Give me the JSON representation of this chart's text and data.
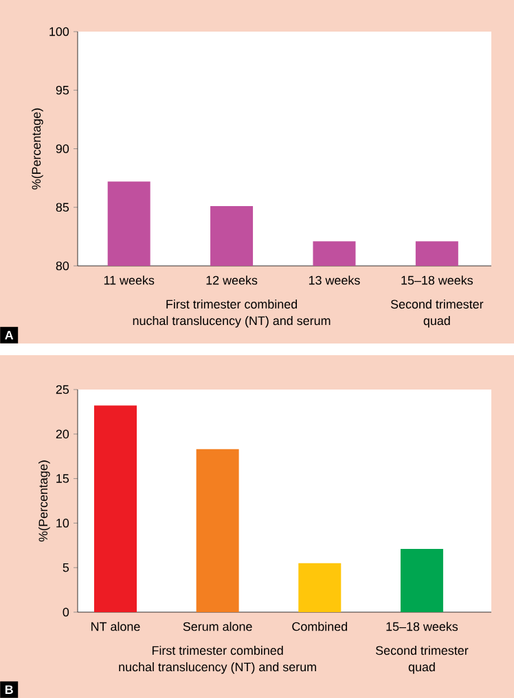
{
  "chart_data": [
    {
      "type": "bar",
      "title": "A",
      "ylabel": "%(Percentage)",
      "categories": [
        "11 weeks",
        "12 weeks",
        "13 weeks",
        "15–18 weeks"
      ],
      "values": [
        87.2,
        85.1,
        82.1,
        82.1
      ],
      "color": "#c0509e",
      "ylim": [
        80,
        100
      ],
      "yticks": [
        80,
        85,
        90,
        95,
        100
      ],
      "annotations": [
        "First trimester combined",
        "nuchal translucency (NT) and serum",
        "Second trimester",
        "quad"
      ]
    },
    {
      "type": "bar",
      "title": "B",
      "ylabel": "%(Percentage)",
      "categories": [
        "NT alone",
        "Serum alone",
        "Combined",
        "15–18 weeks"
      ],
      "values": [
        23.2,
        18.3,
        5.5,
        7.1
      ],
      "colors": [
        "#ed1c24",
        "#f37f21",
        "#ffc60b",
        "#00a650"
      ],
      "ylim": [
        0,
        25
      ],
      "yticks": [
        0,
        5,
        10,
        15,
        20,
        25
      ],
      "annotations": [
        "First trimester combined",
        "nuchal translucency (NT) and serum",
        "Second trimester",
        "quad"
      ]
    }
  ]
}
